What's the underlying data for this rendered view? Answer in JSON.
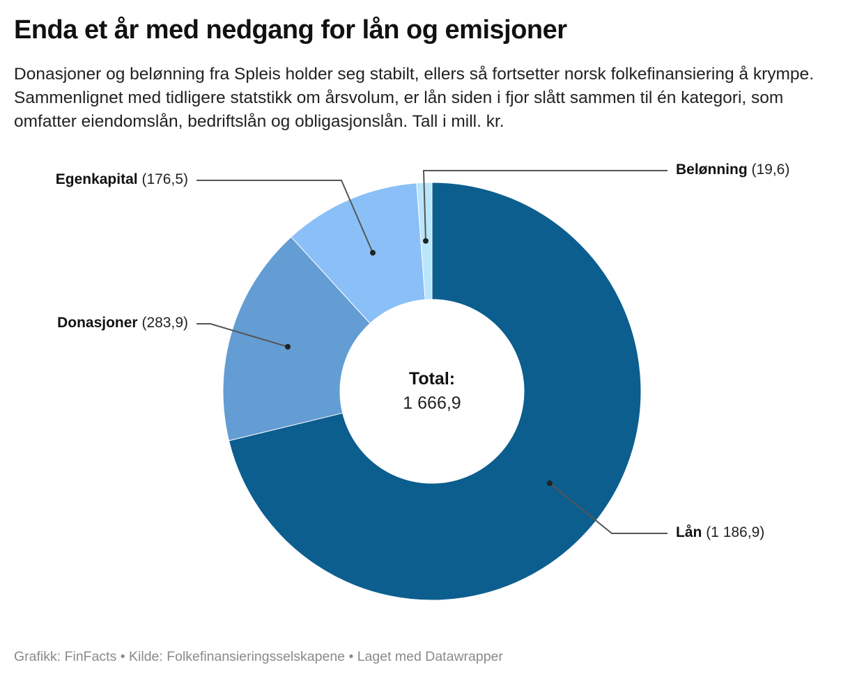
{
  "title": "Enda et år med nedgang for lån og emisjoner",
  "subtitle": "Donasjoner og belønning fra Spleis holder seg stabilt, ellers så fortsetter norsk folkefinansiering å krympe. Sammenlignet med tidligere statstikk om årsvolum, er lån siden i fjor slått sammen til én kategori, som omfatter eiendomslån, bedriftslån og obligasjonslån. Tall i mill. kr.",
  "footer": "Grafikk: FinFacts • Kilde: Folkefinansieringsselskapene • Laget med Datawrapper",
  "chart_data": {
    "type": "pie",
    "variant": "donut",
    "center_label": "Total:",
    "center_value": "1 666,9",
    "slices": [
      {
        "name": "Lån",
        "value": 1186.9,
        "value_label": "(1 186,9)",
        "color": "#0c5e8f"
      },
      {
        "name": "Donasjoner",
        "value": 283.9,
        "value_label": "(283,9)",
        "color": "#639dd3"
      },
      {
        "name": "Egenkapital",
        "value": 176.5,
        "value_label": "(176,5)",
        "color": "#8bbff7"
      },
      {
        "name": "Belønning",
        "value": 19.6,
        "value_label": "(19,6)",
        "color": "#b9e6fb"
      }
    ]
  }
}
